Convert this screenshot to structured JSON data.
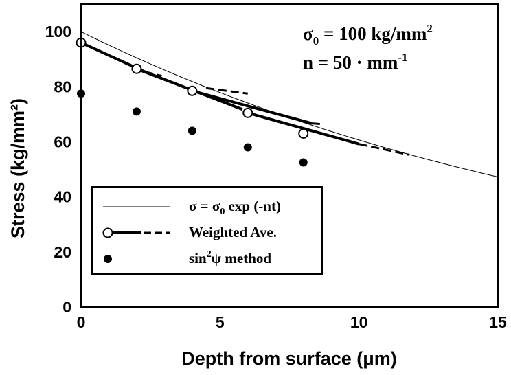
{
  "chart_data": {
    "type": "scatter",
    "xlabel": "Depth from surface (μm)",
    "ylabel": "Stress (kg/mm²)",
    "xlim": [
      0,
      15
    ],
    "ylim": [
      0,
      100
    ],
    "x_ticks": [
      "0",
      "5",
      "10",
      "15"
    ],
    "y_ticks": [
      "0",
      "20",
      "40",
      "60",
      "80",
      "100"
    ],
    "annotations": {
      "sigma0": {
        "lhs": "σ",
        "sub": "0",
        "rhs": " = 100 kg/mm",
        "sup": "2"
      },
      "n": {
        "text": "n = 50 · mm",
        "sup": "-1"
      }
    },
    "legend": {
      "position": "lower-left",
      "entries": [
        {
          "label": "σ = σ",
          "sub": "0",
          "rest": " exp (-nt)",
          "style": "thin-line"
        },
        {
          "label": "Weighted Ave.",
          "style": "open-circle-line-dashed"
        },
        {
          "label": "sin",
          "sup": "2",
          "rest": "ψ method",
          "style": "filled-circle"
        }
      ]
    },
    "series": [
      {
        "name": "σ = σ0 exp (-nt)",
        "style": "thin-line",
        "function": {
          "sigma0": 100,
          "n_per_mm": 50,
          "x_range": [
            0,
            15
          ]
        }
      },
      {
        "name": "Weighted Ave.",
        "style": "open-circle",
        "x": [
          0,
          2,
          4,
          6,
          8
        ],
        "y": [
          96,
          86.5,
          78.5,
          70.5,
          63
        ],
        "segments": [
          {
            "solid_to": [
              2.3,
              85.4
            ],
            "dashed_to": [
              2.9,
              83.9
            ]
          },
          {
            "solid_to": [
              5.8,
              71.8
            ],
            "dashed_to": [
              6.0,
              77.5
            ],
            "dashed_from": [
              4.5,
              79.5
            ]
          },
          {
            "solid_to": [
              8.3,
              66.7
            ],
            "dashed_to": [
              8.7,
              66.4
            ]
          },
          {
            "solid_to": [
              10.0,
              59.2
            ],
            "dashed_to": [
              11.8,
              55.3
            ]
          }
        ]
      },
      {
        "name": "sin²ψ method",
        "style": "filled-circle",
        "x": [
          0,
          2,
          4,
          6,
          8
        ],
        "y": [
          77.5,
          71,
          64,
          58,
          52.5
        ]
      }
    ]
  }
}
